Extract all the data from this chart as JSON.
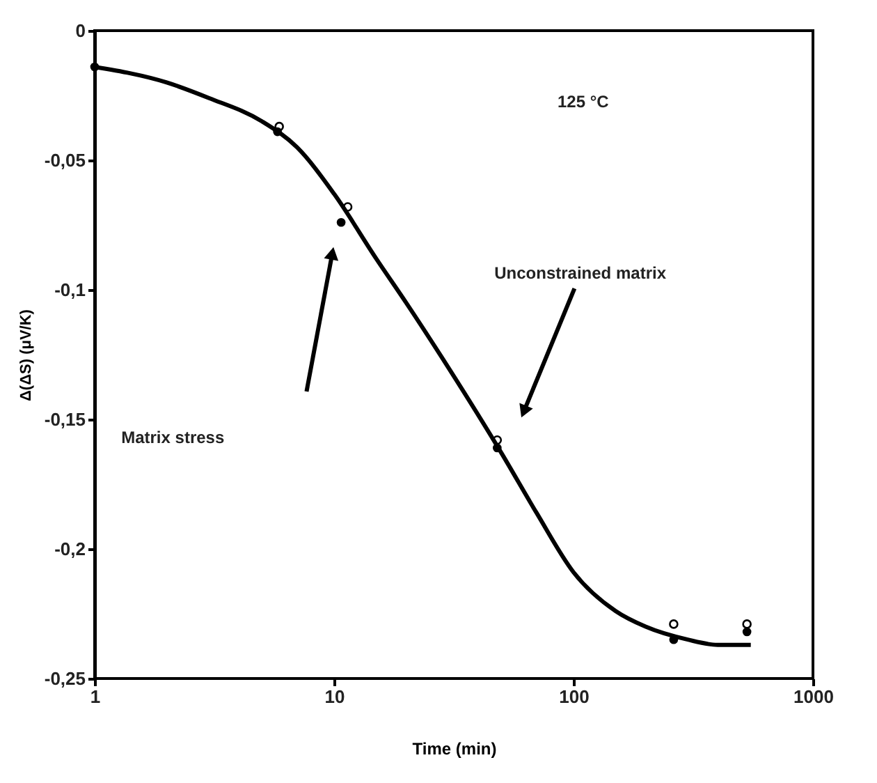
{
  "chart_data": {
    "type": "scatter",
    "xlabel": "Time (min)",
    "ylabel": "Δ(ΔS) (μV/K)",
    "log": "x",
    "xlim": [
      1,
      1000
    ],
    "xticks": [
      1,
      10,
      100,
      1000
    ],
    "ylim": [
      -0.25,
      0
    ],
    "yticks": [
      {
        "value": -0.25,
        "label": "-0,25"
      },
      {
        "value": -0.2,
        "label": "-0,2"
      },
      {
        "value": -0.15,
        "label": "-0,15"
      },
      {
        "value": -0.1,
        "label": "-0,1"
      },
      {
        "value": -0.05,
        "label": "-0,05"
      },
      0
    ],
    "series": [
      {
        "marker": "circle",
        "color": "#000000",
        "x": [
          1,
          5.8,
          10.7,
          48,
          262,
          530
        ],
        "values": [
          -0.014,
          -0.039,
          -0.074,
          -0.161,
          -0.235,
          -0.232
        ]
      },
      {
        "marker": "circle",
        "color": "#000000",
        "x": [
          5.9,
          11.4,
          48,
          262,
          530
        ],
        "values": [
          -0.037,
          -0.068,
          -0.158,
          -0.229,
          -0.229
        ]
      },
      {
        "type": "line",
        "marker": "none",
        "color": "#000000",
        "x": [
          1,
          2,
          3,
          5,
          7,
          10,
          15,
          20,
          30,
          50,
          70,
          100,
          150,
          200,
          300,
          400,
          550
        ],
        "values": [
          -0.014,
          -0.02,
          -0.026,
          -0.035,
          -0.045,
          -0.063,
          -0.088,
          -0.105,
          -0.13,
          -0.163,
          -0.186,
          -0.209,
          -0.224,
          -0.23,
          -0.235,
          -0.237,
          -0.237
        ]
      }
    ],
    "annotations": [
      "125 °C",
      "Matrix stress",
      "Unconstrained matrix"
    ]
  }
}
